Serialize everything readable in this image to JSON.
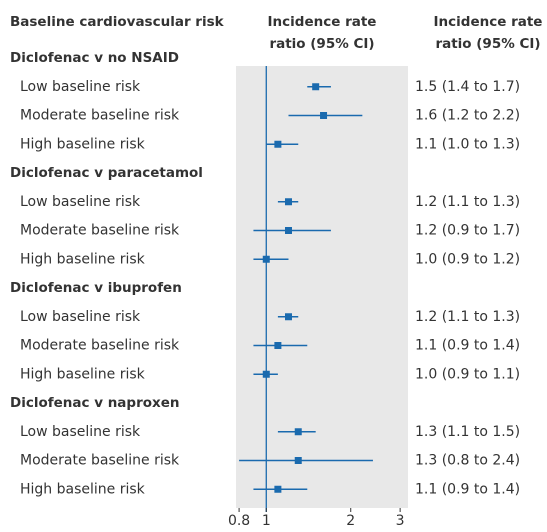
{
  "chart_data": {
    "type": "forest",
    "row_header": "Baseline cardiovascular risk",
    "plot_header": [
      "Incidence rate",
      "ratio (95% CI)"
    ],
    "column_header": [
      "Incidence rate",
      "ratio (95% CI)"
    ],
    "color": "#1a6aae",
    "panel_color": "#e8e8e8",
    "log_scale": true,
    "xlim": [
      0.78,
      3.2
    ],
    "xticks": [
      0.8,
      1,
      2,
      3
    ],
    "reference_line": 1,
    "groups": [
      {
        "name": "Diclofenac v no NSAID",
        "rows": [
          {
            "label": "Low baseline risk",
            "value": 1.5,
            "lower": 1.4,
            "upper": 1.7,
            "value_label": "1.5 (1.4 to 1.7)"
          },
          {
            "label": "Moderate baseline risk",
            "value": 1.6,
            "lower": 1.2,
            "upper": 2.2,
            "value_label": "1.6 (1.2 to 2.2)"
          },
          {
            "label": "High baseline risk",
            "value": 1.1,
            "lower": 1.0,
            "upper": 1.3,
            "value_label": "1.1 (1.0 to 1.3)"
          }
        ]
      },
      {
        "name": "Diclofenac v paracetamol",
        "rows": [
          {
            "label": "Low baseline risk",
            "value": 1.2,
            "lower": 1.1,
            "upper": 1.3,
            "value_label": "1.2 (1.1 to 1.3)"
          },
          {
            "label": "Moderate baseline risk",
            "value": 1.2,
            "lower": 0.9,
            "upper": 1.7,
            "value_label": "1.2 (0.9 to 1.7)"
          },
          {
            "label": "High baseline risk",
            "value": 1.0,
            "lower": 0.9,
            "upper": 1.2,
            "value_label": "1.0 (0.9 to 1.2)"
          }
        ]
      },
      {
        "name": "Diclofenac v ibuprofen",
        "rows": [
          {
            "label": "Low baseline risk",
            "value": 1.2,
            "lower": 1.1,
            "upper": 1.3,
            "value_label": "1.2 (1.1 to 1.3)"
          },
          {
            "label": "Moderate baseline risk",
            "value": 1.1,
            "lower": 0.9,
            "upper": 1.4,
            "value_label": "1.1 (0.9 to 1.4)"
          },
          {
            "label": "High baseline risk",
            "value": 1.0,
            "lower": 0.9,
            "upper": 1.1,
            "value_label": "1.0 (0.9 to 1.1)"
          }
        ]
      },
      {
        "name": "Diclofenac v naproxen",
        "rows": [
          {
            "label": "Low baseline risk",
            "value": 1.3,
            "lower": 1.1,
            "upper": 1.5,
            "value_label": "1.3 (1.1 to 1.5)"
          },
          {
            "label": "Moderate baseline risk",
            "value": 1.3,
            "lower": 0.8,
            "upper": 2.4,
            "value_label": "1.3 (0.8 to 2.4)"
          },
          {
            "label": "High baseline risk",
            "value": 1.1,
            "lower": 0.9,
            "upper": 1.4,
            "value_label": "1.1 (0.9 to 1.4)"
          }
        ]
      }
    ]
  }
}
